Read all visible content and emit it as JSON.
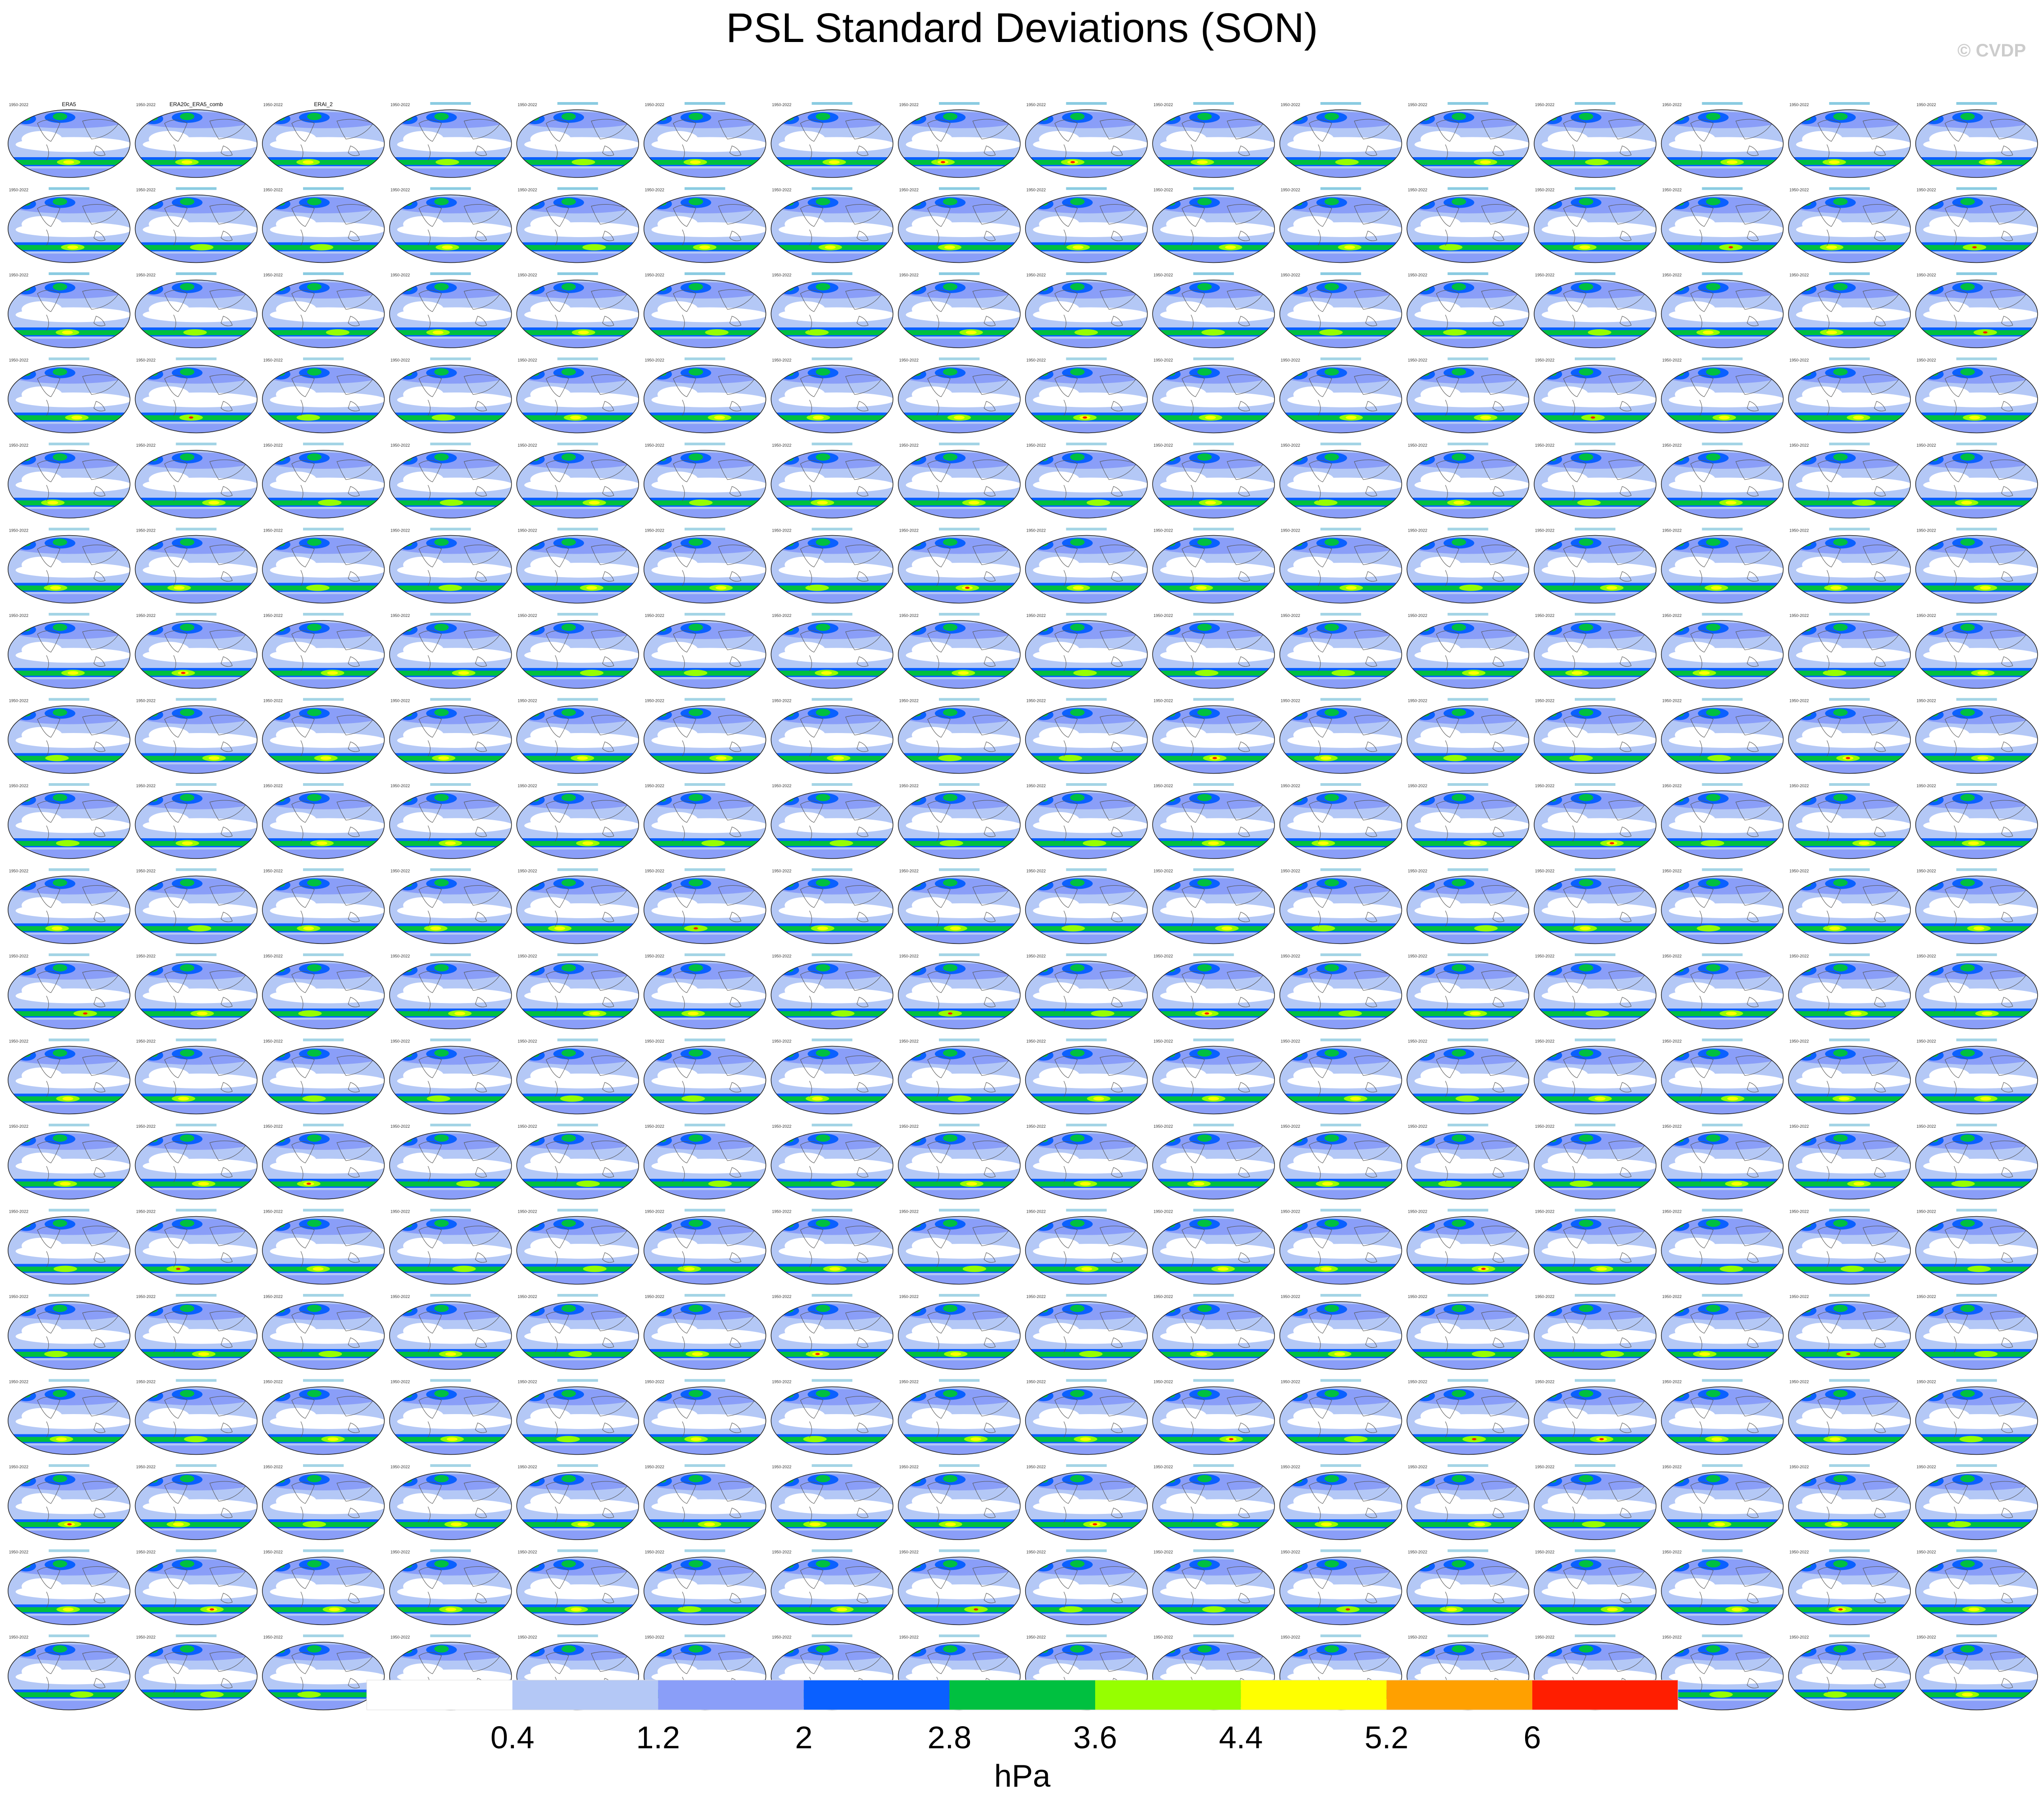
{
  "title": "PSL Standard Deviations (SON)",
  "watermark": "© CVDP",
  "chart_data": {
    "type": "heatmap",
    "title": "PSL Standard Deviations (SON)",
    "layout": {
      "rows": 19,
      "cols": 16
    },
    "first_panel_titles": [
      "ERA5",
      "ERA20c_ERA5_comb",
      "ERAI_2"
    ],
    "panel_period_label": "1950-2022",
    "colorbar": {
      "units": "hPa",
      "levels": [
        "0.4",
        "1.2",
        "2",
        "2.8",
        "3.6",
        "4.4",
        "5.2",
        "6"
      ],
      "colors": [
        "#ffffff",
        "#b4c8f6",
        "#8a9ef8",
        "#0a60ff",
        "#00c040",
        "#96ff00",
        "#ffff00",
        "#ffa000",
        "#ff1e00"
      ]
    },
    "colors": {
      "ocean_low": "#b4c8f6",
      "ocean_mid": "#8a9ef8",
      "storm_track": "#0a60ff",
      "high": "#00c040",
      "higher": "#96ff00",
      "peak": "#ffff00",
      "extreme": "#ff1e00"
    }
  }
}
